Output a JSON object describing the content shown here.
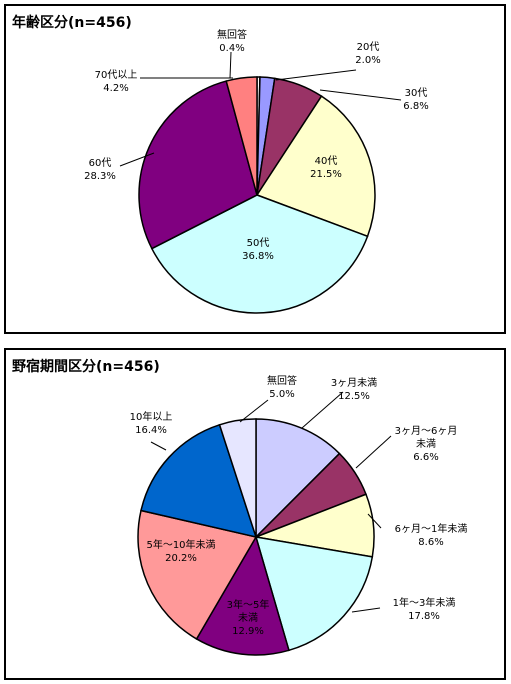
{
  "chart_data": [
    {
      "type": "pie",
      "title": "年齢区分(n=456)",
      "slices": [
        {
          "label": "無回答",
          "value": 0.4,
          "value_label": "0.4%",
          "color": "#ffffff"
        },
        {
          "label": "20代",
          "value": 2.0,
          "value_label": "2.0%",
          "color": "#9999ff"
        },
        {
          "label": "30代",
          "value": 6.8,
          "value_label": "6.8%",
          "color": "#993366"
        },
        {
          "label": "40代",
          "value": 21.5,
          "value_label": "21.5%",
          "color": "#ffffcc"
        },
        {
          "label": "50代",
          "value": 36.8,
          "value_label": "36.8%",
          "color": "#ccffff"
        },
        {
          "label": "60代",
          "value": 28.3,
          "value_label": "28.3%",
          "color": "#800080"
        },
        {
          "label": "70代以上",
          "value": 4.2,
          "value_label": "4.2%",
          "color": "#ff8080"
        }
      ],
      "start_angle": "12 o'clock",
      "direction": "clockwise"
    },
    {
      "type": "pie",
      "title": "野宿期間区分(n=456)",
      "slices": [
        {
          "label": "3ヶ月未満",
          "value": 12.5,
          "value_label": "12.5%",
          "color": "#ccccff"
        },
        {
          "label": "3ヶ月～6ヶ月未満",
          "value": 6.6,
          "value_label": "6.6%",
          "color": "#993366"
        },
        {
          "label": "6ヶ月～1年未満",
          "value": 8.6,
          "value_label": "8.6%",
          "color": "#ffffcc"
        },
        {
          "label": "1年～3年未満",
          "value": 17.8,
          "value_label": "17.8%",
          "color": "#ccffff"
        },
        {
          "label": "3年～5年未満",
          "value": 12.9,
          "value_label": "12.9%",
          "color": "#800080"
        },
        {
          "label": "5年～10年未満",
          "value": 20.2,
          "value_label": "20.2%",
          "color": "#ff9999"
        },
        {
          "label": "10年以上",
          "value": 16.4,
          "value_label": "16.4%",
          "color": "#0066cc"
        },
        {
          "label": "無回答",
          "value": 5.0,
          "value_label": "5.0%",
          "color": "#e6e6ff"
        }
      ],
      "start_angle": "12 o'clock",
      "direction": "clockwise"
    }
  ]
}
